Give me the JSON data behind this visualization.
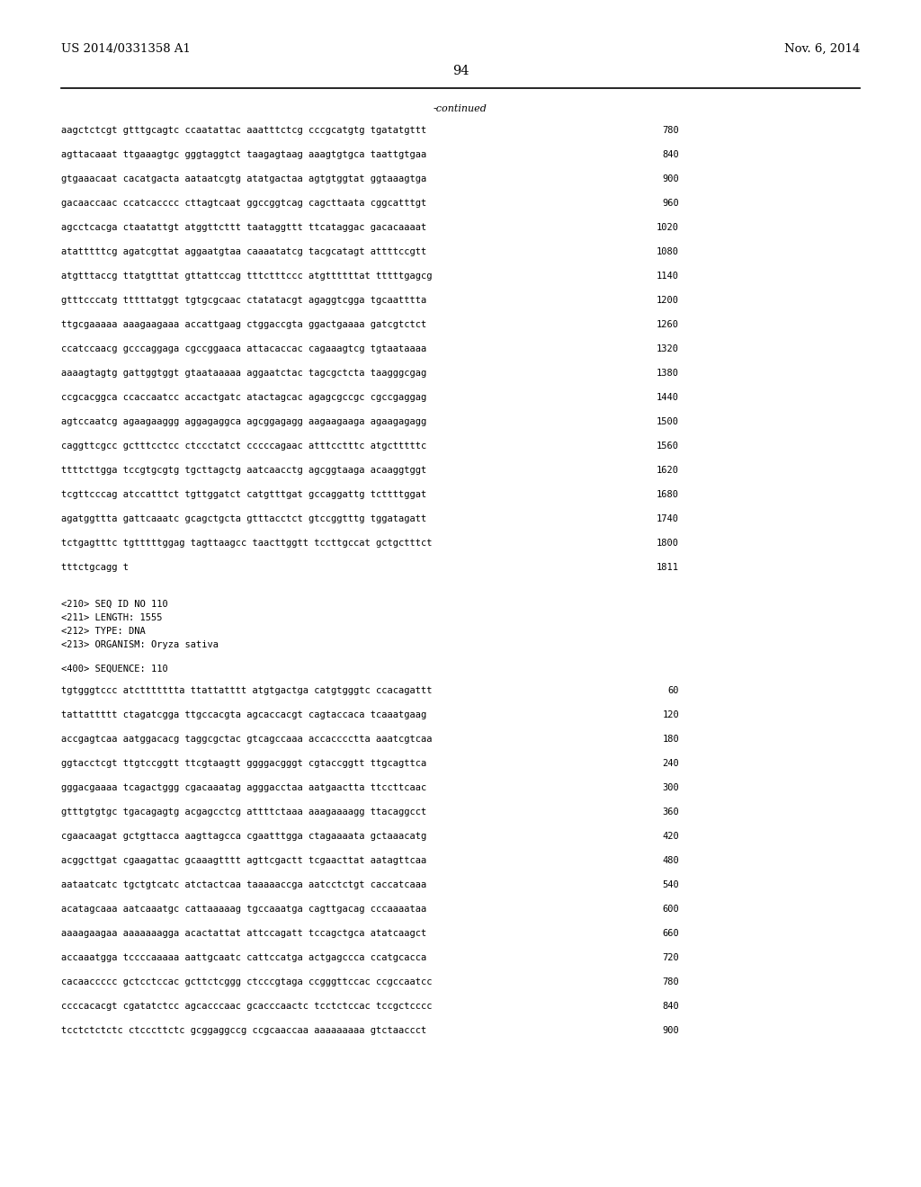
{
  "header_left": "US 2014/0331358 A1",
  "header_right": "Nov. 6, 2014",
  "page_number": "94",
  "continued_label": "-continued",
  "background_color": "#ffffff",
  "text_color": "#000000",
  "font_size_header": 9.5,
  "font_size_page": 10.5,
  "font_size_seq": 7.5,
  "font_size_meta": 7.5,
  "sequence_lines_top": [
    [
      "aagctctcgt gtttgcagtc ccaatattac aaatttctcg cccgcatgtg tgatatgttt",
      "780"
    ],
    [
      "agttacaaat ttgaaagtgc gggtaggtct taagagtaag aaagtgtgca taattgtgaa",
      "840"
    ],
    [
      "gtgaaacaat cacatgacta aataatcgtg atatgactaa agtgtggtat ggtaaagtga",
      "900"
    ],
    [
      "gacaaccaac ccatcacccc cttagtcaat ggccggtcag cagcttaata cggcatttgt",
      "960"
    ],
    [
      "agcctcacga ctaatattgt atggttcttt taataggttt ttcataggac gacacaaaat",
      "1020"
    ],
    [
      "atatttttcg agatcgttat aggaatgtaa caaaatatcg tacgcatagt attttccgtt",
      "1080"
    ],
    [
      "atgtttaccg ttatgtttat gttattccag tttctttccc atgttttttat tttttgagcg",
      "1140"
    ],
    [
      "gtttcccatg tttttatggt tgtgcgcaac ctatatacgt agaggtcgga tgcaatttta",
      "1200"
    ],
    [
      "ttgcgaaaaa aaagaagaaa accattgaag ctggaccgta ggactgaaaa gatcgtctct",
      "1260"
    ],
    [
      "ccatccaacg gcccaggaga cgccggaaca attacaccac cagaaagtcg tgtaataaaa",
      "1320"
    ],
    [
      "aaaagtagtg gattggtggt gtaataaaaa aggaatctac tagcgctcta taagggcgag",
      "1380"
    ],
    [
      "ccgcacggca ccaccaatcc accactgatc atactagcac agagcgccgc cgccgaggag",
      "1440"
    ],
    [
      "agtccaatcg agaagaaggg aggagaggca agcggagagg aagaagaaga agaagagagg",
      "1500"
    ],
    [
      "caggttcgcc gctttcctcc ctccctatct cccccagaac atttcctttc atgctttttc",
      "1560"
    ],
    [
      "ttttcttgga tccgtgcgtg tgcttagctg aatcaacctg agcggtaaga acaaggtggt",
      "1620"
    ],
    [
      "tcgttcccag atccatttct tgttggatct catgtttgat gccaggattg tcttttggat",
      "1680"
    ],
    [
      "agatggttta gattcaaatc gcagctgcta gtttacctct gtccggtttg tggatagatt",
      "1740"
    ],
    [
      "tctgagtttc tgtttttggag tagttaagcc taacttggtt tccttgccat gctgctttct",
      "1800"
    ],
    [
      "tttctgcagg t",
      "1811"
    ]
  ],
  "metadata_lines": [
    "<210> SEQ ID NO 110",
    "<211> LENGTH: 1555",
    "<212> TYPE: DNA",
    "<213> ORGANISM: Oryza sativa"
  ],
  "sequence_label": "<400> SEQUENCE: 110",
  "sequence_lines_bottom": [
    [
      "tgtgggtccc atcttttttta ttattatttt atgtgactga catgtgggtc ccacagattt",
      "60"
    ],
    [
      "tattattttt ctagatcgga ttgccacgta agcaccacgt cagtaccaca tcaaatgaag",
      "120"
    ],
    [
      "accgagtcaa aatggacacg taggcgctac gtcagccaaa accacccctta aaatcgtcaa",
      "180"
    ],
    [
      "ggtacctcgt ttgtccggtt ttcgtaagtt ggggacgggt cgtaccggtt ttgcagttca",
      "240"
    ],
    [
      "gggacgaaaa tcagactggg cgacaaatag agggacctaa aatgaactta ttccttcaac",
      "300"
    ],
    [
      "gtttgtgtgc tgacagagtg acgagcctcg attttctaaa aaagaaaagg ttacaggcct",
      "360"
    ],
    [
      "cgaacaagat gctgttacca aagttagcca cgaatttgga ctagaaaata gctaaacatg",
      "420"
    ],
    [
      "acggcttgat cgaagattac gcaaagtttt agttcgactt tcgaacttat aatagttcaa",
      "480"
    ],
    [
      "aataatcatc tgctgtcatc atctactcaa taaaaaccga aatcctctgt caccatcaaa",
      "540"
    ],
    [
      "acatagcaaa aatcaaatgc cattaaaaag tgccaaatga cagttgacag cccaaaataa",
      "600"
    ],
    [
      "aaaagaagaa aaaaaaagga acactattat attccagatt tccagctgca atatcaagct",
      "660"
    ],
    [
      "accaaatgga tccccaaaaa aattgcaatc cattccatga actgagccca ccatgcacca",
      "720"
    ],
    [
      "cacaaccccc gctcctccac gcttctcggg ctcccgtaga ccgggttccac ccgccaatcc",
      "780"
    ],
    [
      "ccccacacgt cgatatctcc agcacccaac gcacccaactc tcctctccac tccgctcccc",
      "840"
    ],
    [
      "tcctctctctc ctcccttctc gcggaggccg ccgcaaccaa aaaaaaaaa gtctaaccct",
      "900"
    ]
  ]
}
